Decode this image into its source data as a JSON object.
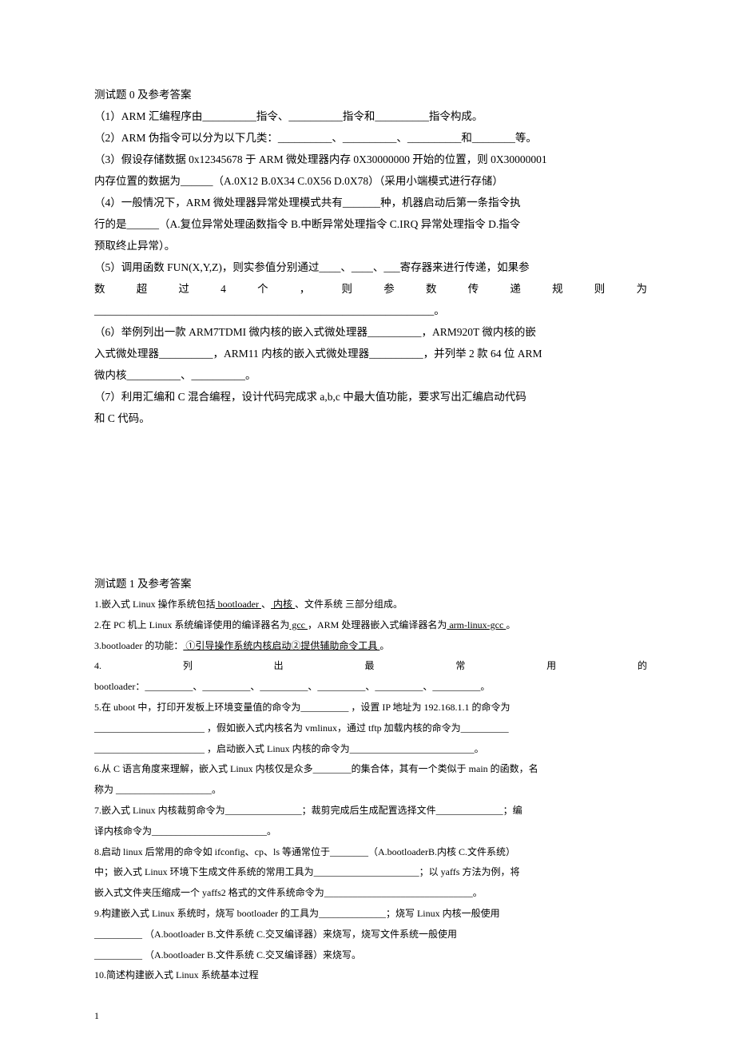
{
  "section0": {
    "title": "测试题 0 及参考答案",
    "q1": "（1）ARM 汇编程序由__________指令、__________指令和__________指令构成。",
    "q2": "（2）ARM 伪指令可以分为以下几类：__________、__________、__________和________等。",
    "q3a": "（3）假设存储数据 0x12345678 于 ARM 微处理器内存 0X30000000 开始的位置，则 0X30000001",
    "q3b": "内存位置的数据为______（A.0X12 B.0X34 C.0X56 D.0X78）（采用小端模式进行存储）",
    "q4a": "（4）一般情况下，ARM 微处理器异常处理模式共有_______种，机器启动后第一条指令执",
    "q4b": "行的是______（A.复位异常处理函数指令 B.中断异常处理指令 C.IRQ 异常处理指令 D.指令",
    "q4c": "预取终止异常）。",
    "q5a": "（5）调用函数 FUN(X,Y,Z)，则实参值分别通过____、____、___寄存器来进行传递，如果参",
    "q5b": "数超过4个，则参数传递规则为",
    "q5c": "_______________________________________________________________。",
    "q6a": "（6）举例列出一款 ARM7TDMI 微内核的嵌入式微处理器__________，ARM920T 微内核的嵌",
    "q6b": "入式微处理器__________，ARM11 内核的嵌入式微处理器__________，并列举 2 款 64 位 ARM",
    "q6c": "微内核__________、__________。",
    "q7a": "（7）利用汇编和 C 混合编程，设计代码完成求 a,b,c 中最大值功能，要求写出汇编启动代码",
    "q7b": "和 C 代码。"
  },
  "section1": {
    "title": "测试题 1 及参考答案",
    "q1_a": "1.嵌入式 Linux 操作系统包括",
    "q1_b": "  bootloader   ",
    "q1_c": "、",
    "q1_d": " 内核 ",
    "q1_e": "、文件系统  三部分组成。",
    "q2_a": "2.在 PC 机上 Linux 系统编译使用的编译器名为",
    "q2_b": "  gcc   ",
    "q2_c": "，ARM 处理器嵌入式编译器名为",
    "q2_d": " arm-linux-gcc  ",
    "q2_e": "。",
    "q3_a": "3.bootloader 的功能：",
    "q3_b": "   ①引导操作系统内核启动②提供辅助命令工具            ",
    "q3_c": " 。",
    "q4a": "4.列出最常用的",
    "q4b": "bootloader：__________、__________、__________、__________、__________、__________。",
    "q5a": "5.在 uboot 中，打印开发板上环境变量值的命令为__________ ，设置 IP 地址为 192.168.1.1 的命令为",
    "q5b": "_______________________ ，假如嵌入式内核名为 vmlinux，通过 tftp 加载内核的命令为__________",
    "q5c": "_______________________ ，启动嵌入式 Linux 内核的命令为__________________________。",
    "q6a": "6.从 C 语言角度来理解，嵌入式 Linux 内核仅是众多________的集合体，其有一个类似于 main 的函数，名",
    "q6b": "称为 ____________________。",
    "q7a": "7.嵌入式 Linux 内核裁剪命令为________________；裁剪完成后生成配置选择文件______________；编",
    "q7b": "译内核命令为________________________。",
    "q8a": "8.启动 linux 后常用的命令如 ifconfig、cp、ls 等通常位于________（A.bootloaderB.内核 C.文件系统）",
    "q8b": "中；嵌入式 Linux 环境下生成文件系统的常用工具为______________________；以 yaffs 方法为例，将",
    "q8c": "嵌入式文件夹压缩成一个 yaffs2 格式的文件系统命令为_______________________________。",
    "q9a": "9.构建嵌入式 Linux 系统时，烧写 bootloader 的工具为______________；烧写 Linux 内核一般使用",
    "q9b": "__________ （A.bootloader B.文件系统 C.交叉编译器）来烧写，烧写文件系统一般使用",
    "q9c": "__________ （A.bootloader B.文件系统 C.交叉编译器）来烧写。",
    "q10": "10.简述构建嵌入式 Linux 系统基本过程"
  },
  "pageNumber": "1"
}
